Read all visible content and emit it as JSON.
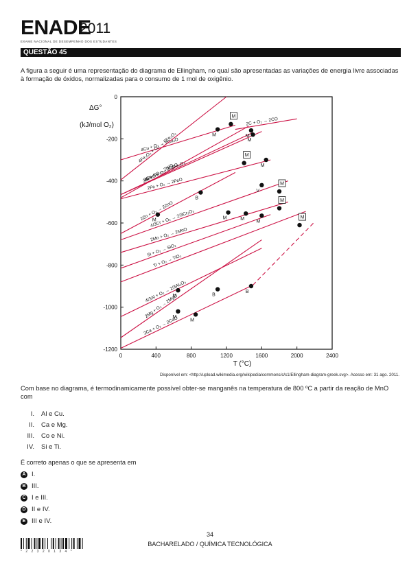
{
  "header": {
    "brand": "ENADE",
    "year": "2011",
    "subtitle": "EXAME NACIONAL DE DESEMPENHO DOS ESTUDANTES"
  },
  "question": {
    "label": "QUESTÃO 45",
    "stem": "A figura a seguir é uma representação do diagrama de Ellingham, no qual são apresentadas as variações de energia livre associadas à formação de óxidos, normalizadas para o consumo de 1 mol de oxigênio.",
    "prompt": "Com base no diagrama, é termodinamicamente possível obter-se manganês na temperatura de 800 ºC a partir da reação de MnO com",
    "items": [
      {
        "num": "I.",
        "text": "Al e Cu."
      },
      {
        "num": "II.",
        "text": "Ca e Mg."
      },
      {
        "num": "III.",
        "text": "Co e Ni."
      },
      {
        "num": "IV.",
        "text": "Si e Ti."
      }
    ],
    "lead": "É correto apenas o que se apresenta em",
    "alternatives": [
      {
        "letter": "A",
        "text": "I."
      },
      {
        "letter": "B",
        "text": "III."
      },
      {
        "letter": "C",
        "text": "I e III."
      },
      {
        "letter": "D",
        "text": "II e IV."
      },
      {
        "letter": "E",
        "text": "III e IV."
      }
    ]
  },
  "footer": {
    "page": "34",
    "course": "BACHARELADO / QUÍMICA TECNOLÓGICA",
    "barcode_text": "* 2 2 3 2 0 1 3 4 *"
  },
  "chart_data": {
    "type": "line",
    "ylabel_line1": "ΔG°",
    "ylabel_line2": "(kJ/mol O₂)",
    "xlabel": "T (°C)",
    "xlim": [
      0,
      2400
    ],
    "ylim": [
      -1200,
      0
    ],
    "xticks": [
      0,
      400,
      800,
      1200,
      1600,
      2000,
      2400
    ],
    "yticks": [
      0,
      -200,
      -400,
      -600,
      -800,
      -1000,
      -1200
    ],
    "color": "#cc1144",
    "source": "Disponível em: <http://upload.wikimedia.org/wikipedia/commons/c/c1/Ellingham-diagram-greek.svg>. Acesso em: 31 ago. 2011.",
    "series": [
      {
        "label": "4Cu + O₂ → 2Cu₂O",
        "x": [
          0,
          1300
        ],
        "y": [
          -300,
          -135
        ]
      },
      {
        "label": "2Co + O₂ → 2CoO",
        "x": [
          0,
          1500
        ],
        "y": [
          -465,
          -170
        ]
      },
      {
        "label": "2Ni + O₂ → 2NiO",
        "x": [
          0,
          1450
        ],
        "y": [
          -480,
          -140
        ]
      },
      {
        "label": "6FeO + O₂ → 2Fe₃O₄",
        "x": [
          0,
          1600
        ],
        "y": [
          -465,
          -165
        ]
      },
      {
        "label": "4Fe₃O₄ + O₂ → 6Fe₂O₃",
        "x": [
          0,
          1200
        ],
        "y": [
          -395,
          0
        ]
      },
      {
        "label": "2C + O₂ → 2CO",
        "x": [
          1300,
          2000
        ],
        "y": [
          -155,
          -105
        ]
      },
      {
        "label": "2Fe + O₂ → 2FeO",
        "x": [
          0,
          1700
        ],
        "y": [
          -485,
          -300
        ]
      },
      {
        "label": "2Zn + O₂ → 2ZnO",
        "x": [
          0,
          1300
        ],
        "y": [
          -650,
          -360
        ]
      },
      {
        "label": "4/3Cr + O₂ → 2/3Cr₂O₃",
        "x": [
          0,
          1900
        ],
        "y": [
          -680,
          -400
        ]
      },
      {
        "label": "2Mn + O₂ → 2MnO",
        "x": [
          0,
          1900
        ],
        "y": [
          -740,
          -500
        ]
      },
      {
        "label": "Si + O₂ → SiO₂",
        "x": [
          0,
          1700
        ],
        "y": [
          -815,
          -560
        ]
      },
      {
        "label": "Ti + O₂ → TiO₂",
        "x": [
          0,
          2100
        ],
        "y": [
          -880,
          -545
        ]
      },
      {
        "label": "4/3Al + O₂ → 2/3Al₂O₃",
        "x": [
          0,
          1600
        ],
        "y": [
          -1045,
          -720
        ]
      },
      {
        "label": "2Mg + O₂ → 2MgO",
        "x": [
          0,
          1600
        ],
        "y": [
          -1145,
          -680
        ]
      },
      {
        "label": "2Ca + O₂ → 2CaO",
        "x": [
          0,
          1500
        ],
        "y": [
          -1195,
          -895
        ]
      },
      {
        "label": "2Ca + O₂ → 2CaO (dashed)",
        "x": [
          1500,
          2200
        ],
        "y": [
          -895,
          -595
        ],
        "dashed": true
      }
    ],
    "points": [
      {
        "x": 1100,
        "y": -155,
        "marker": "M"
      },
      {
        "x": 1250,
        "y": -130,
        "marker": "M",
        "boxed": true
      },
      {
        "x": 1480,
        "y": -160,
        "marker": "M"
      },
      {
        "x": 1500,
        "y": -180,
        "marker": "M"
      },
      {
        "x": 1400,
        "y": -315,
        "marker": "M",
        "boxed": true
      },
      {
        "x": 1650,
        "y": -300,
        "marker": "M"
      },
      {
        "x": 1600,
        "y": -420,
        "marker": "V"
      },
      {
        "x": 1800,
        "y": -450,
        "marker": "M",
        "boxed": true
      },
      {
        "x": 420,
        "y": -560,
        "marker": "M"
      },
      {
        "x": 907,
        "y": -455,
        "marker": "B"
      },
      {
        "x": 1220,
        "y": -550,
        "marker": "M"
      },
      {
        "x": 1420,
        "y": -555,
        "marker": "M"
      },
      {
        "x": 1600,
        "y": -565,
        "marker": "M"
      },
      {
        "x": 1800,
        "y": -530,
        "marker": "M",
        "boxed": true
      },
      {
        "x": 2030,
        "y": -610,
        "marker": "M",
        "boxed": true
      },
      {
        "x": 650,
        "y": -920,
        "marker": "M"
      },
      {
        "x": 1100,
        "y": -915,
        "marker": "B"
      },
      {
        "x": 650,
        "y": -1020,
        "marker": "M"
      },
      {
        "x": 850,
        "y": -1035,
        "marker": "M"
      },
      {
        "x": 1480,
        "y": -900,
        "marker": "B"
      }
    ]
  }
}
